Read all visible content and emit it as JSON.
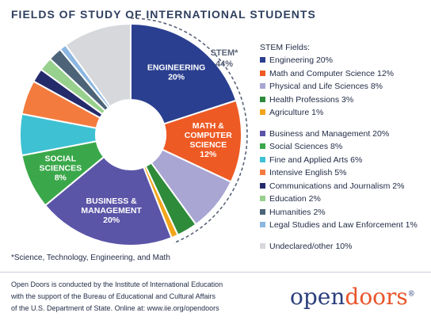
{
  "title": "FIELDS OF STUDY OF INTERNATIONAL STUDENTS",
  "stem_label": "STEM*",
  "stem_pct": "44%",
  "legend_header": "STEM Fields:",
  "footnote": "*Science, Technology, Engineering, and Math",
  "source_lines": [
    "Open Doors is conducted by the Institute of International Education",
    "with the support of the Bureau of Educational and Cultural Affairs",
    "of the U.S. Department of State. Online at: www.iie.org/opendoors"
  ],
  "brand": {
    "part1": "open",
    "part2": "doors",
    "mark": "®"
  },
  "chart_data": {
    "type": "pie",
    "title": "FIELDS OF STUDY OF INTERNATIONAL STUDENTS",
    "slices": [
      {
        "name": "Engineering",
        "value": 20,
        "color": "#2a3f8f",
        "legend": "Engineering  20%",
        "slice_label": [
          "ENGINEERING",
          "20%"
        ]
      },
      {
        "name": "Math and Computer Science",
        "value": 12,
        "color": "#ee5a24",
        "legend": "Math and Computer Science  12%",
        "slice_label": [
          "MATH &",
          "COMPUTER",
          "SCIENCE",
          "12%"
        ]
      },
      {
        "name": "Physical and Life Sciences",
        "value": 8,
        "color": "#a9a6d4",
        "legend": "Physical and Life Sciences  8%"
      },
      {
        "name": "Health Professions",
        "value": 3,
        "color": "#2e8b3a",
        "legend": "Health Professions  3%"
      },
      {
        "name": "Agriculture",
        "value": 1,
        "color": "#f2a51a",
        "legend": "Agriculture  1%"
      },
      {
        "name": "Business and Management",
        "value": 20,
        "color": "#5b55a8",
        "legend": "Business and Management  20%",
        "slice_label": [
          "BUSINESS &",
          "MANAGEMENT",
          "20%"
        ]
      },
      {
        "name": "Social Sciences",
        "value": 8,
        "color": "#3aa84a",
        "legend": "Social Sciences  8%",
        "slice_label": [
          "SOCIAL",
          "SCIENCES",
          "8%"
        ]
      },
      {
        "name": "Fine and Applied Arts",
        "value": 6,
        "color": "#3ec1d3",
        "legend": "Fine and Applied Arts  6%"
      },
      {
        "name": "Intensive English",
        "value": 5,
        "color": "#f47b3e",
        "legend": "Intensive English  5%"
      },
      {
        "name": "Communications and Journalism",
        "value": 2,
        "color": "#242b6b",
        "legend": "Communications and Journalism  2%"
      },
      {
        "name": "Education",
        "value": 2,
        "color": "#98d08e",
        "legend": "Education  2%"
      },
      {
        "name": "Humanities",
        "value": 2,
        "color": "#4d6478",
        "legend": "Humanities  2%"
      },
      {
        "name": "Legal Studies and Law Enforcement",
        "value": 1,
        "color": "#8bb7e0",
        "legend": "Legal Studies and Law Enforcement  1%"
      },
      {
        "name": "Undeclared/other",
        "value": 10,
        "color": "#d6d8dc",
        "legend": "Undeclared/other  10%"
      }
    ]
  }
}
